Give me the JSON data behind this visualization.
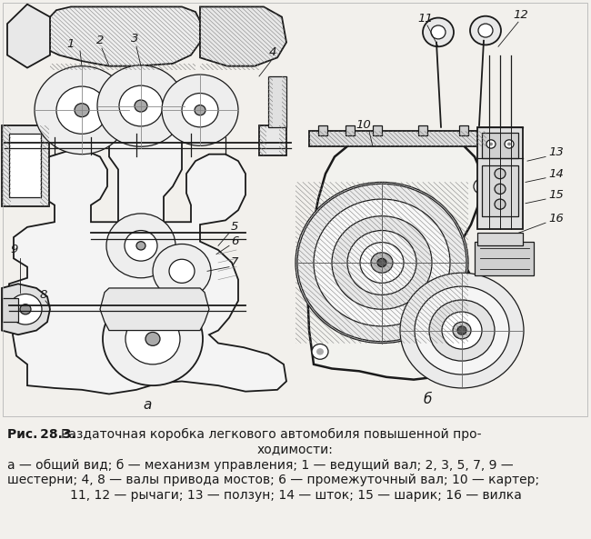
{
  "bg": "#f2f0ec",
  "fg": "#1a1a1a",
  "white": "#ffffff",
  "fig_w": 6.5,
  "fig_h": 5.93,
  "dpi": 100,
  "caption_bold": "Рис. 28.3.",
  "caption_rest": " Раздаточная коробка легкового автомобиля повышенной про-",
  "caption_l2": "ходимости:",
  "caption_l3": "а — общий вид; б — механизм управления; 1 — ведущий вал; 2, 3, 5, 7, 9 —",
  "caption_l4": "шестерни; 4, 8 — валы привода мостов; 6 — промежуточный вал; 10 — картер;",
  "caption_l5": "11, 12 — рычаги; 13 — ползун; 14 — шток; 15 — шарик; 16 — вилка",
  "fs_caption": 10.0,
  "fs_label": 9.5
}
